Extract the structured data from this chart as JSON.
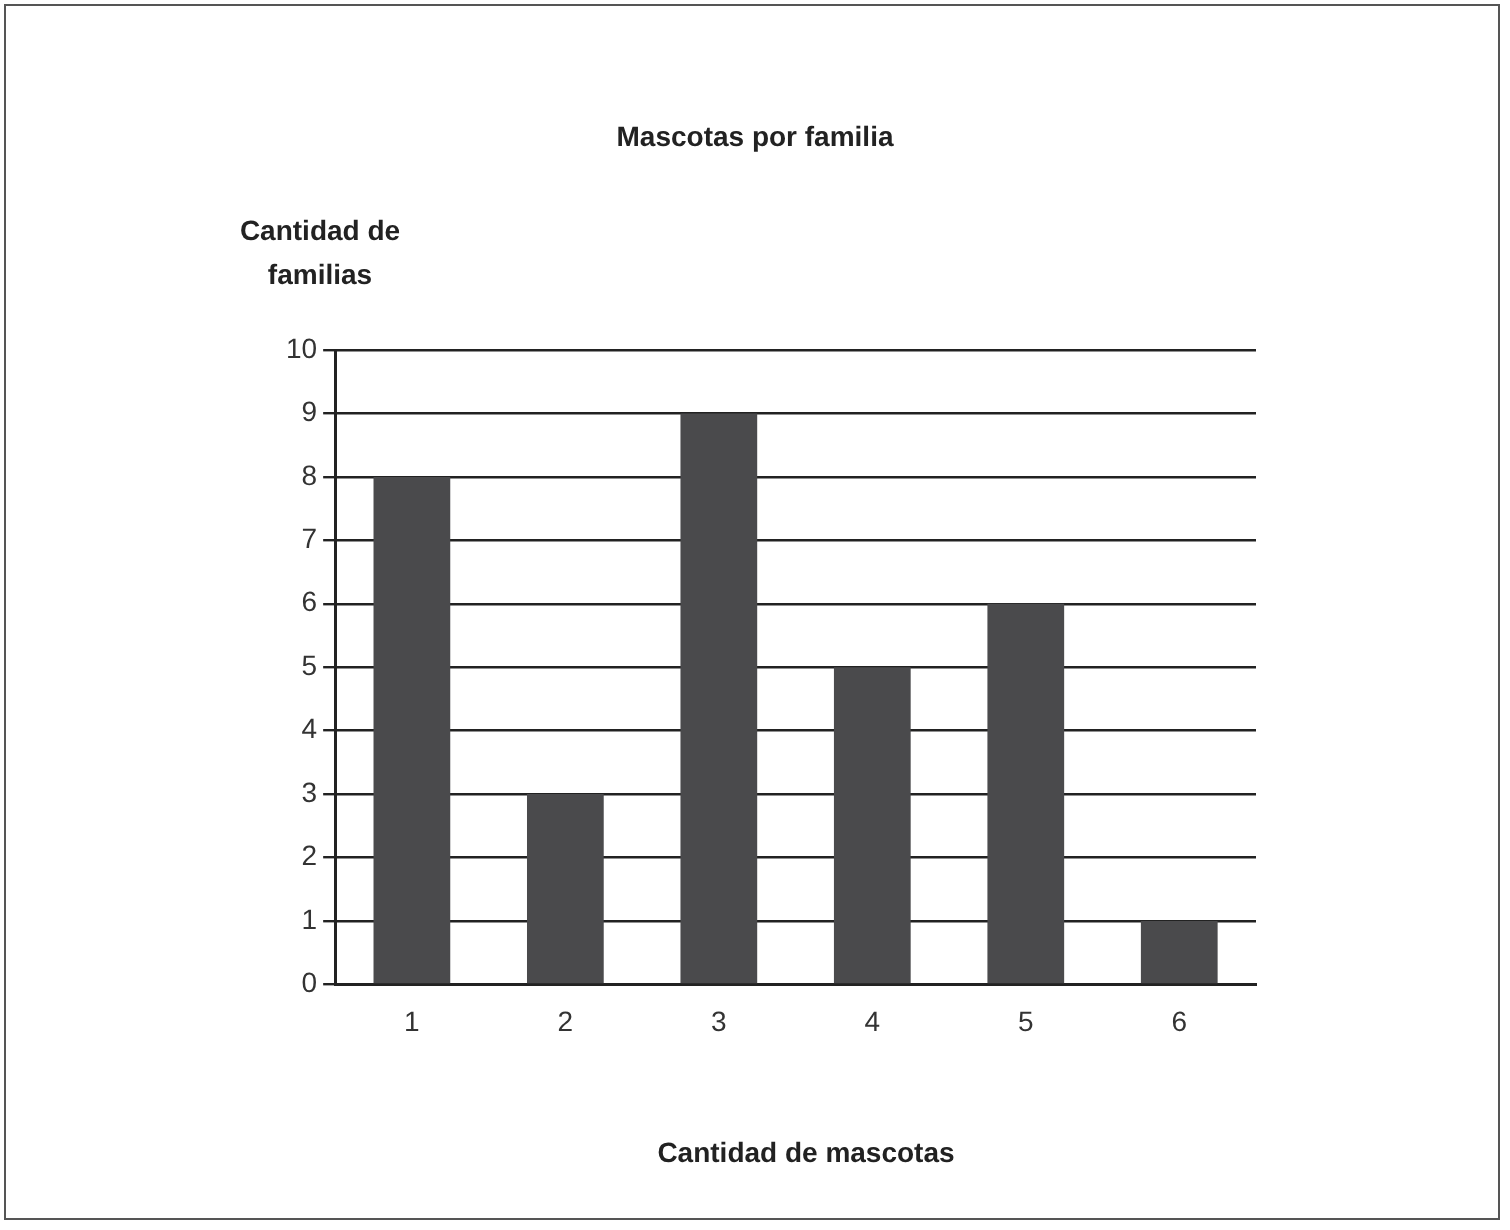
{
  "chart_data": {
    "type": "bar",
    "title": "Mascotas por familia",
    "xlabel": "Cantidad de mascotas",
    "ylabel": "Cantidad de familias",
    "categories": [
      "1",
      "2",
      "3",
      "4",
      "5",
      "6"
    ],
    "values": [
      8,
      3,
      9,
      5,
      6,
      1
    ],
    "color": "#4a4a4c",
    "ylim": [
      0,
      10
    ],
    "yticks": [
      0,
      1,
      2,
      3,
      4,
      5,
      6,
      7,
      8,
      9,
      10
    ],
    "grid": "y",
    "legend": false
  }
}
